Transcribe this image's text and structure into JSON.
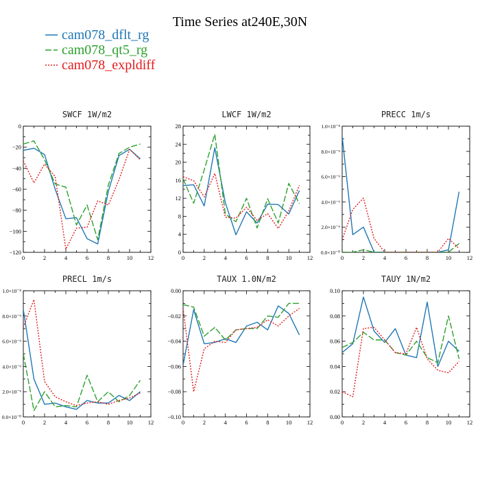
{
  "figure": {
    "title": "Time Series at240E,30N",
    "legend": [
      {
        "name": "cam078_dflt_rg",
        "color": "#1f77b4",
        "dash": "solid"
      },
      {
        "name": "cam078_qt5_rg",
        "color": "#2ca02c",
        "dash": "longdash"
      },
      {
        "name": "cam078_expldiff",
        "color": "#e31a1c",
        "dash": "dotted"
      }
    ]
  },
  "chart_data": [
    {
      "type": "line",
      "title": "SWCF   1W/m2",
      "x": [
        0,
        1,
        2,
        3,
        4,
        5,
        6,
        7,
        8,
        9,
        10,
        11
      ],
      "xlim": [
        0,
        12
      ],
      "xticks": [
        0,
        2,
        4,
        6,
        8,
        10,
        12
      ],
      "ylim": [
        -120,
        0
      ],
      "yticks": [
        -120,
        -100,
        -80,
        -60,
        -40,
        -20,
        0
      ],
      "ytick_labels": [
        "−120",
        "−100",
        "−80",
        "−60",
        "−40",
        "−20",
        "0"
      ],
      "series": [
        {
          "name": "cam078_dflt_rg",
          "values": [
            -23,
            -21,
            -27,
            -60,
            -88,
            -87,
            -107,
            -112,
            -62,
            -28,
            -22,
            -31
          ]
        },
        {
          "name": "cam078_qt5_rg",
          "values": [
            -17,
            -14,
            -32,
            -55,
            -58,
            -94,
            -75,
            -108,
            -56,
            -26,
            -20,
            -17
          ]
        },
        {
          "name": "cam078_expldiff",
          "values": [
            -33,
            -54,
            -36,
            -48,
            -117,
            -97,
            -96,
            -71,
            -75,
            -51,
            -22,
            -32
          ]
        }
      ]
    },
    {
      "type": "line",
      "title": "LWCF   1W/m2",
      "x": [
        0,
        1,
        2,
        3,
        4,
        5,
        6,
        7,
        8,
        9,
        10,
        11
      ],
      "xlim": [
        0,
        12
      ],
      "xticks": [
        0,
        2,
        4,
        6,
        8,
        10,
        12
      ],
      "ylim": [
        0,
        28
      ],
      "yticks": [
        0,
        4,
        8,
        12,
        16,
        20,
        24,
        28
      ],
      "ytick_labels": [
        "0",
        "4",
        "8",
        "12",
        "16",
        "20",
        "24",
        "28"
      ],
      "series": [
        {
          "name": "cam078_dflt_rg",
          "values": [
            14.8,
            15.0,
            10.3,
            23.2,
            11.0,
            3.9,
            9.0,
            6.5,
            10.7,
            10.6,
            8.5,
            13.7
          ]
        },
        {
          "name": "cam078_qt5_rg",
          "values": [
            16.3,
            10.9,
            18.3,
            26.2,
            8.5,
            6.8,
            12.0,
            5.4,
            11.9,
            6.5,
            15.3,
            10.8
          ]
        },
        {
          "name": "cam078_expldiff",
          "values": [
            16.8,
            15.9,
            12.3,
            17.5,
            7.8,
            7.6,
            10.0,
            7.1,
            8.6,
            5.3,
            9.2,
            14.9
          ]
        }
      ]
    },
    {
      "type": "line",
      "title": "PRECC   1m/s",
      "x": [
        0,
        1,
        2,
        3,
        4,
        5,
        6,
        7,
        8,
        9,
        10,
        11
      ],
      "xlim": [
        0,
        12
      ],
      "xticks": [
        0,
        2,
        4,
        6,
        8,
        10,
        12
      ],
      "ylim": [
        0,
        1e-08
      ],
      "yticks": [
        0,
        2e-09,
        4e-09,
        6e-09,
        8e-09,
        1e-08
      ],
      "ytick_labels": [
        "0.0×10⁻⁰",
        "2.0×10⁻⁹",
        "4.0×10⁻⁹",
        "6.0×10⁻⁹",
        "8.0×10⁻⁹",
        "1.0×10⁻⁸"
      ],
      "series": [
        {
          "name": "cam078_dflt_rg",
          "values": [
            9.2e-09,
            1.4e-09,
            2e-09,
            2e-11,
            1e-11,
            1e-11,
            1e-11,
            1e-11,
            1e-11,
            1e-11,
            2e-10,
            4.8e-09
          ]
        },
        {
          "name": "cam078_qt5_rg",
          "values": [
            1e-11,
            1e-11,
            2e-10,
            1e-11,
            1e-11,
            1e-11,
            1e-11,
            1e-11,
            1e-11,
            1e-11,
            1e-11,
            7e-10
          ]
        },
        {
          "name": "cam078_expldiff",
          "values": [
            1e-09,
            3.4e-09,
            4.3e-09,
            1.1e-09,
            1e-11,
            1e-11,
            1e-11,
            1e-11,
            1e-11,
            1e-11,
            1.1e-09,
            3e-10
          ]
        }
      ]
    },
    {
      "type": "line",
      "title": "PRECL   1m/s",
      "x": [
        0,
        1,
        2,
        3,
        4,
        5,
        6,
        7,
        8,
        9,
        10,
        11
      ],
      "xlim": [
        0,
        12
      ],
      "xticks": [
        0,
        2,
        4,
        6,
        8,
        10,
        12
      ],
      "ylim": [
        0,
        1e-08
      ],
      "yticks": [
        0,
        2e-09,
        4e-09,
        6e-09,
        8e-09,
        1e-08
      ],
      "ytick_labels": [
        "0.0×10⁻⁰",
        "2.0×10⁻⁹",
        "4.0×10⁻⁹",
        "6.0×10⁻⁹",
        "8.0×10⁻⁹",
        "1.0×10⁻⁸"
      ],
      "series": [
        {
          "name": "cam078_dflt_rg",
          "values": [
            8.5e-09,
            3e-09,
            1e-09,
            1.1e-09,
            8e-10,
            6e-10,
            1.3e-09,
            1.1e-09,
            1.1e-09,
            1.7e-09,
            1.3e-09,
            2e-09
          ]
        },
        {
          "name": "cam078_qt5_rg",
          "values": [
            5e-09,
            5e-10,
            2e-09,
            8e-10,
            9e-10,
            8e-10,
            3.3e-09,
            1.2e-09,
            2e-09,
            1.2e-09,
            1.7e-09,
            2.9e-09
          ]
        },
        {
          "name": "cam078_expldiff",
          "values": [
            7.1e-09,
            9.3e-09,
            2.8e-09,
            1.6e-09,
            1.2e-09,
            9e-10,
            1.1e-09,
            1.2e-09,
            1e-09,
            1.3e-09,
            1.5e-09,
            1.9e-09
          ]
        }
      ]
    },
    {
      "type": "line",
      "title": "TAUX   1.0N/m2",
      "x": [
        0,
        1,
        2,
        3,
        4,
        5,
        6,
        7,
        8,
        9,
        10,
        11
      ],
      "xlim": [
        0,
        12
      ],
      "xticks": [
        0,
        2,
        4,
        6,
        8,
        10,
        12
      ],
      "ylim": [
        -0.1,
        0.0
      ],
      "yticks": [
        -0.1,
        -0.08,
        -0.06,
        -0.04,
        -0.02,
        0.0
      ],
      "ytick_labels": [
        "−0.10",
        "−0.08",
        "−0.06",
        "−0.04",
        "−0.02",
        "0.00"
      ],
      "series": [
        {
          "name": "cam078_dflt_rg",
          "values": [
            -0.059,
            -0.015,
            -0.042,
            -0.041,
            -0.038,
            -0.041,
            -0.028,
            -0.025,
            -0.031,
            -0.012,
            -0.018,
            -0.035
          ]
        },
        {
          "name": "cam078_qt5_rg",
          "values": [
            -0.011,
            -0.013,
            -0.036,
            -0.029,
            -0.039,
            -0.031,
            -0.03,
            -0.03,
            -0.02,
            -0.021,
            -0.01,
            -0.01
          ]
        },
        {
          "name": "cam078_expldiff",
          "values": [
            -0.014,
            -0.08,
            -0.046,
            -0.04,
            -0.041,
            -0.031,
            -0.03,
            -0.029,
            -0.023,
            -0.028,
            -0.02,
            -0.014
          ]
        }
      ]
    },
    {
      "type": "line",
      "title": "TAUY   1N/m2",
      "x": [
        0,
        1,
        2,
        3,
        4,
        5,
        6,
        7,
        8,
        9,
        10,
        11
      ],
      "xlim": [
        0,
        12
      ],
      "xticks": [
        0,
        2,
        4,
        6,
        8,
        10,
        12
      ],
      "ylim": [
        0.0,
        0.1
      ],
      "yticks": [
        0.0,
        0.02,
        0.04,
        0.06,
        0.08,
        0.1
      ],
      "ytick_labels": [
        "0.00",
        "0.02",
        "0.04",
        "0.06",
        "0.08",
        "0.10"
      ],
      "series": [
        {
          "name": "cam078_dflt_rg",
          "values": [
            0.051,
            0.058,
            0.095,
            0.068,
            0.059,
            0.07,
            0.049,
            0.047,
            0.091,
            0.04,
            0.06,
            0.052
          ]
        },
        {
          "name": "cam078_qt5_rg",
          "values": [
            0.055,
            0.059,
            0.067,
            0.061,
            0.061,
            0.051,
            0.049,
            0.06,
            0.047,
            0.043,
            0.08,
            0.046
          ]
        },
        {
          "name": "cam078_expldiff",
          "values": [
            0.02,
            0.016,
            0.07,
            0.071,
            0.061,
            0.051,
            0.05,
            0.071,
            0.046,
            0.037,
            0.035,
            0.044
          ]
        }
      ]
    }
  ]
}
